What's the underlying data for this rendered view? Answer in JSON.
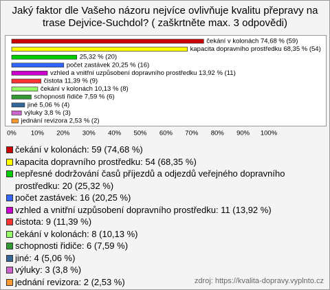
{
  "chart_data": {
    "type": "bar",
    "orientation": "horizontal",
    "title": "Jaký faktor dle Vašeho názoru nejvíce ovlivňuje kvalitu přepravy na trase Dejvice-Suchdol? ( zaškrtněte max. 3 odpovědi)",
    "values": [
      74.68,
      68.35,
      25.32,
      20.25,
      13.92,
      11.39,
      10.13,
      7.59,
      5.06,
      3.8,
      2.53
    ],
    "value_labels": [
      "čekání v kolonách 74,68 % (59)",
      "kapacita dopravního prostředku 68,35 % (54)",
      "25,32 % (20)",
      "počet zastávek 20,25 % (16)",
      "vzhled a vnitřní uzpůsobení dopravního prostředku 13,92 % (11)",
      "čistota 11,39 % (9)",
      "čekání v kolonách 10,13 % (8)",
      "schopnosti řidiče 7,59 % (6)",
      "jiné 5,06 % (4)",
      "výluky 3,8 % (3)",
      "jednání revizora 2,53 % (2)"
    ],
    "colors": [
      "#cc0000",
      "#ffff00",
      "#00cc00",
      "#3366ff",
      "#cc00cc",
      "#ff3333",
      "#99ff66",
      "#339933",
      "#336699",
      "#cc66cc",
      "#ff9933"
    ],
    "legend": [
      "čekání v kolonách: 59 (74,68 %)",
      "kapacita dopravního prostředku: 54 (68,35 %)",
      "nepřesné dodržování časů příjezdů a odjezdů veřejného dopravního prostředku: 20 (25,32 %)",
      "počet zastávek: 16 (20,25 %)",
      "vzhled a vnitřní uzpůsobení dopravního prostředku: 11 (13,92 %)",
      "čistota: 9 (11,39 %)",
      "čekání v kolonách: 8 (10,13 %)",
      "schopnosti řidiče: 6 (7,59 %)",
      "jiné: 4 (5,06 %)",
      "výluky: 3 (3,8 %)",
      "jednání revizora: 2 (2,53 %)"
    ],
    "xlim": [
      0,
      100
    ],
    "xticks": [
      {
        "value": 0,
        "label": "0%"
      },
      {
        "value": 10,
        "label": "10%"
      },
      {
        "value": 20,
        "label": "20%"
      },
      {
        "value": 30,
        "label": "30%"
      },
      {
        "value": 40,
        "label": "40%"
      },
      {
        "value": 50,
        "label": "50%"
      },
      {
        "value": 60,
        "label": "60%"
      },
      {
        "value": 70,
        "label": "70%"
      },
      {
        "value": 80,
        "label": "80%"
      },
      {
        "value": 90,
        "label": "90%"
      },
      {
        "value": 100,
        "label": "100%"
      }
    ],
    "source": "zdroj: https://kvalita-dopravy.vyplnto.cz"
  }
}
